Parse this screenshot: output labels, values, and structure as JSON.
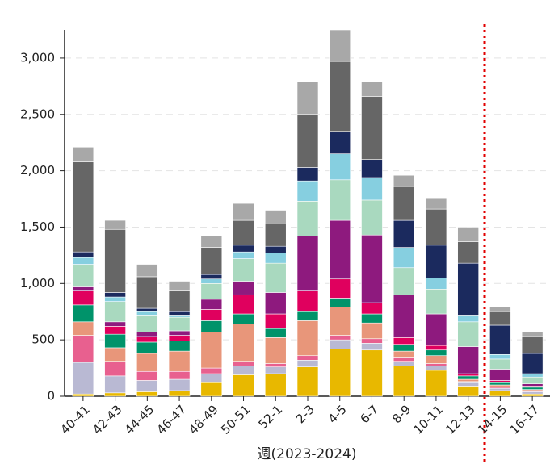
{
  "chart_data": {
    "type": "stacked_bar",
    "x_label": "週(2023-2024)",
    "categories": [
      "40-41",
      "42-43",
      "44-45",
      "46-47",
      "48-49",
      "50-51",
      "52-1",
      "2-3",
      "4-5",
      "6-7",
      "8-9",
      "10-11",
      "12-13",
      "14-15",
      "16-17"
    ],
    "series": [
      {
        "color": "#e8b800",
        "values": [
          20,
          30,
          40,
          50,
          120,
          190,
          200,
          260,
          420,
          410,
          270,
          230,
          90,
          50,
          20
        ]
      },
      {
        "color": "#b9b9d3",
        "values": [
          280,
          150,
          100,
          100,
          80,
          80,
          60,
          60,
          80,
          60,
          40,
          40,
          30,
          20,
          20
        ]
      },
      {
        "color": "#e8608f",
        "values": [
          240,
          130,
          80,
          70,
          50,
          40,
          30,
          40,
          40,
          40,
          30,
          20,
          10,
          10,
          10
        ]
      },
      {
        "color": "#e8967a",
        "values": [
          120,
          120,
          160,
          180,
          320,
          330,
          230,
          310,
          250,
          140,
          60,
          70,
          20,
          20,
          10
        ]
      },
      {
        "color": "#00936a",
        "values": [
          150,
          120,
          100,
          90,
          100,
          90,
          80,
          80,
          80,
          80,
          60,
          50,
          30,
          20,
          20
        ]
      },
      {
        "color": "#e0005e",
        "values": [
          130,
          70,
          50,
          50,
          100,
          170,
          130,
          190,
          170,
          100,
          60,
          40,
          20,
          20,
          10
        ]
      },
      {
        "color": "#8e1a7e",
        "values": [
          30,
          40,
          40,
          40,
          90,
          120,
          190,
          480,
          520,
          600,
          380,
          280,
          240,
          100,
          20
        ]
      },
      {
        "color": "#a9d9bf",
        "values": [
          200,
          180,
          150,
          120,
          140,
          200,
          260,
          310,
          360,
          310,
          240,
          220,
          220,
          90,
          60
        ]
      },
      {
        "color": "#86cfe0",
        "values": [
          60,
          40,
          30,
          20,
          40,
          60,
          90,
          180,
          230,
          200,
          180,
          100,
          60,
          40,
          30
        ]
      },
      {
        "color": "#1b2a5e",
        "values": [
          50,
          40,
          30,
          30,
          40,
          60,
          60,
          120,
          200,
          160,
          240,
          290,
          460,
          260,
          180
        ]
      },
      {
        "color": "#666666",
        "values": [
          800,
          560,
          280,
          190,
          240,
          220,
          200,
          470,
          620,
          560,
          300,
          320,
          190,
          120,
          150
        ]
      },
      {
        "color": "#a8a8a8",
        "values": [
          130,
          80,
          110,
          80,
          100,
          150,
          120,
          290,
          280,
          130,
          100,
          100,
          130,
          40,
          40
        ]
      }
    ],
    "ylim": [
      0,
      3250
    ],
    "yticks": [
      0,
      500,
      {
        "value": 1000,
        "label": "1,000"
      },
      {
        "value": 1500,
        "label": "1,500"
      },
      {
        "value": 2000,
        "label": "2,000"
      },
      {
        "value": 2500,
        "label": "2,500"
      },
      {
        "value": 3000,
        "label": "3,000"
      }
    ],
    "grid": true
  }
}
